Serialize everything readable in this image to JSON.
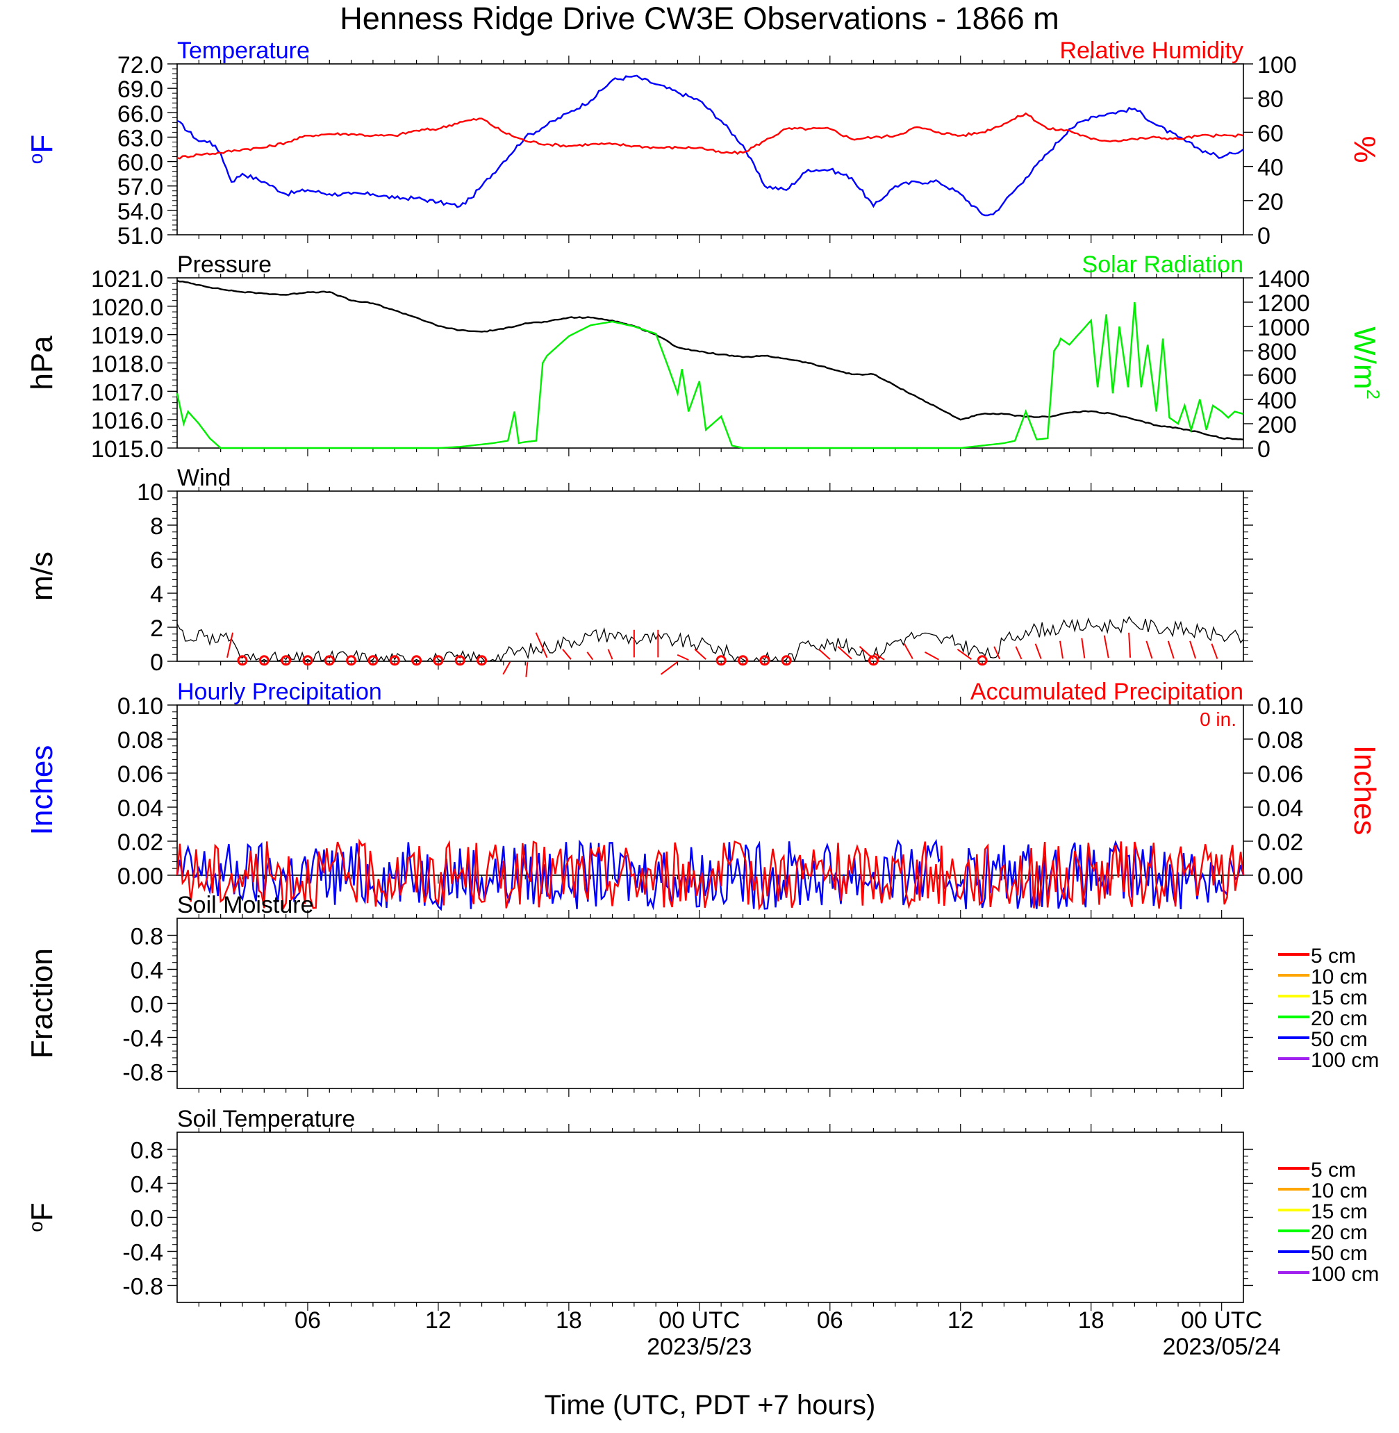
{
  "title": "Henness Ridge Drive CW3E Observations - 1866 m",
  "xlabel": "Time (UTC, PDT +7 hours)",
  "x_ticks": [
    {
      "hour": 6,
      "label": "06",
      "sublabel": ""
    },
    {
      "hour": 12,
      "label": "12",
      "sublabel": ""
    },
    {
      "hour": 18,
      "label": "18",
      "sublabel": ""
    },
    {
      "hour": 24,
      "label": "00 UTC",
      "sublabel": "2023/5/23"
    },
    {
      "hour": 30,
      "label": "06",
      "sublabel": ""
    },
    {
      "hour": 36,
      "label": "12",
      "sublabel": ""
    },
    {
      "hour": 42,
      "label": "18",
      "sublabel": ""
    },
    {
      "hour": 48,
      "label": "00 UTC",
      "sublabel": "2023/05/24"
    }
  ],
  "x_range_hours": [
    0,
    49
  ],
  "colors": {
    "temperature": "#0000ff",
    "humidity": "#ff0000",
    "pressure": "#000000",
    "solar": "#00ee00",
    "wind": "#000000",
    "wind_barb": "#ff0000",
    "precip_hourly": "#0000ff",
    "precip_accum": "#ff0000"
  },
  "chart_data": [
    {
      "type": "line",
      "panel": "temperature-humidity",
      "left_title": "Temperature",
      "right_title": "Relative Humidity",
      "ylabel_left": "oF",
      "ylabel_right": "%",
      "ylim_left": [
        51,
        72
      ],
      "ylim_right": [
        0,
        100
      ],
      "yticks_left": [
        "72.0",
        "69.0",
        "66.0",
        "63.0",
        "60.0",
        "57.0",
        "54.0",
        "51.0"
      ],
      "yticks_right": [
        "100",
        "80",
        "60",
        "40",
        "20",
        "0"
      ],
      "series": [
        {
          "name": "Temperature",
          "axis": "left",
          "color": "#0000ff",
          "x": [
            0,
            1,
            1.5,
            2,
            2.5,
            3,
            4,
            5,
            6,
            7,
            8,
            9,
            10,
            11,
            12,
            13,
            13.5,
            14,
            15,
            16,
            17,
            18,
            19,
            20,
            21,
            22,
            23,
            24,
            25,
            26,
            27,
            28,
            29,
            30,
            31,
            32,
            33,
            34,
            35,
            36,
            37,
            37.5,
            38,
            39,
            40,
            41,
            42,
            43,
            44,
            45,
            46,
            47,
            48,
            48.5,
            49
          ],
          "y": [
            65,
            62.5,
            62.5,
            61,
            57.5,
            58.5,
            57.5,
            56,
            56.5,
            56,
            56,
            56,
            55.5,
            55.5,
            55,
            54.5,
            55.5,
            57,
            60,
            63,
            64.5,
            66,
            67.5,
            70,
            70.5,
            69.5,
            68.5,
            67.5,
            65,
            62,
            57,
            56.5,
            59,
            59,
            58,
            54.5,
            57,
            57.5,
            57.5,
            56,
            53.5,
            53.5,
            55,
            58,
            61,
            64,
            65.5,
            66,
            66.5,
            64.5,
            63,
            61.5,
            60.5,
            61,
            61.5
          ]
        },
        {
          "name": "Relative Humidity",
          "axis": "right",
          "color": "#ff0000",
          "x": [
            0,
            1,
            2,
            3,
            4,
            5,
            6,
            7,
            8,
            9,
            10,
            11,
            12,
            13,
            14,
            15,
            16,
            17,
            18,
            19,
            20,
            21,
            22,
            23,
            24,
            25,
            26,
            27,
            28,
            29,
            30,
            31,
            32,
            33,
            34,
            35,
            36,
            37,
            38,
            39,
            40,
            41,
            42,
            43,
            44,
            45,
            46,
            47,
            48,
            49
          ],
          "y": [
            45,
            47,
            48,
            50,
            51,
            54,
            58,
            59,
            59,
            58,
            58,
            61,
            62,
            66,
            68,
            60,
            55,
            53,
            52,
            53,
            53,
            52,
            51,
            51,
            51,
            48,
            48,
            55,
            62,
            62,
            62,
            56,
            57,
            58,
            63,
            60,
            58,
            60,
            65,
            71,
            62,
            61,
            56,
            55,
            56,
            57,
            56,
            58,
            58,
            58
          ]
        }
      ]
    },
    {
      "type": "line",
      "panel": "pressure-solar",
      "left_title": "Pressure",
      "right_title": "Solar Radiation",
      "ylabel_left": "hPa",
      "ylabel_right": "W/m2",
      "ylim_left": [
        1015,
        1021
      ],
      "ylim_right": [
        0,
        1400
      ],
      "yticks_left": [
        "1021.0",
        "1020.0",
        "1019.0",
        "1018.0",
        "1017.0",
        "1016.0",
        "1015.0"
      ],
      "yticks_right": [
        "1400",
        "1200",
        "1000",
        "800",
        "600",
        "400",
        "200",
        "0"
      ],
      "series": [
        {
          "name": "Pressure",
          "axis": "left",
          "color": "#000000",
          "x": [
            0,
            1,
            2,
            3,
            4,
            5,
            6,
            7,
            8,
            9,
            10,
            11,
            12,
            13,
            14,
            15,
            16,
            17,
            18,
            19,
            20,
            21,
            22,
            23,
            24,
            25,
            26,
            27,
            28,
            29,
            30,
            31,
            32,
            33,
            34,
            35,
            36,
            37,
            38,
            39,
            40,
            41,
            42,
            43,
            44,
            45,
            46,
            47,
            48,
            49
          ],
          "y": [
            1020.9,
            1020.75,
            1020.6,
            1020.5,
            1020.45,
            1020.4,
            1020.5,
            1020.5,
            1020.2,
            1020.1,
            1019.85,
            1019.6,
            1019.3,
            1019.15,
            1019.1,
            1019.2,
            1019.4,
            1019.45,
            1019.6,
            1019.6,
            1019.5,
            1019.3,
            1019,
            1018.55,
            1018.4,
            1018.3,
            1018.2,
            1018.25,
            1018.15,
            1018,
            1017.8,
            1017.6,
            1017.6,
            1017.2,
            1016.8,
            1016.4,
            1016,
            1016.2,
            1016.2,
            1016.1,
            1016.1,
            1016.25,
            1016.3,
            1016.2,
            1016,
            1015.8,
            1015.7,
            1015.55,
            1015.35,
            1015.3
          ]
        },
        {
          "name": "Solar Radiation",
          "axis": "right",
          "color": "#00ee00",
          "x": [
            0,
            0.3,
            0.5,
            1,
            1.5,
            2,
            5,
            10,
            12,
            13,
            14,
            14.5,
            15.2,
            15.5,
            15.7,
            16,
            16.5,
            16.8,
            17,
            18,
            19,
            20,
            21,
            22,
            22.5,
            23,
            23.2,
            23.5,
            24,
            24.3,
            25,
            25.5,
            26,
            30,
            36,
            37,
            38,
            38.5,
            39,
            39.5,
            40,
            40.3,
            40.5,
            40.6,
            41,
            42,
            42.3,
            42.7,
            43,
            43.3,
            43.7,
            44,
            44.3,
            44.6,
            45,
            45.3,
            45.6,
            46,
            46.3,
            46.6,
            47,
            47.3,
            47.6,
            48,
            48.3,
            48.6,
            49
          ],
          "y": [
            450,
            200,
            300,
            200,
            80,
            0,
            0,
            0,
            0,
            10,
            30,
            40,
            60,
            300,
            40,
            50,
            60,
            700,
            760,
            920,
            1010,
            1040,
            1000,
            940,
            700,
            450,
            650,
            300,
            550,
            150,
            260,
            20,
            0,
            0,
            0,
            20,
            40,
            60,
            300,
            70,
            80,
            800,
            850,
            900,
            850,
            1050,
            500,
            1100,
            450,
            1000,
            500,
            1200,
            500,
            850,
            300,
            900,
            250,
            200,
            350,
            150,
            400,
            150,
            350,
            300,
            250,
            300,
            280
          ]
        }
      ]
    },
    {
      "type": "line",
      "panel": "wind",
      "left_title": "Wind",
      "ylabel_left": "m/s",
      "ylim_left": [
        0,
        10
      ],
      "yticks_left": [
        "10",
        "8",
        "6",
        "4",
        "2",
        "0"
      ],
      "series": [
        {
          "name": "Wind",
          "axis": "left",
          "color": "#000000",
          "x": [
            0,
            0.5,
            1,
            1.5,
            2,
            2.5,
            2.8,
            3,
            4,
            5,
            6,
            7,
            8,
            9,
            10,
            11,
            12,
            13,
            14,
            14.5,
            15,
            16,
            17,
            18,
            19,
            20,
            21,
            22,
            23,
            24,
            25,
            25.5,
            26,
            27,
            28,
            28.5,
            29,
            30,
            31,
            32,
            33,
            33.5,
            34,
            35,
            36,
            37,
            37.5,
            38,
            39,
            40,
            41,
            42,
            43,
            44,
            45,
            46,
            47,
            48,
            49
          ],
          "y": [
            2.2,
            1.2,
            1.8,
            1,
            1.6,
            1.3,
            0.6,
            0.2,
            0.1,
            0.1,
            0.1,
            0.2,
            0.3,
            0.1,
            0.1,
            0.1,
            0.1,
            0.2,
            0.2,
            0.1,
            0.4,
            0.6,
            0.8,
            1.2,
            1.5,
            1.6,
            1.3,
            1.3,
            1.2,
            1,
            0.7,
            0.3,
            0.1,
            0.1,
            0.1,
            0.5,
            1.2,
            1,
            0.8,
            0.3,
            1.2,
            1.4,
            1.5,
            1.3,
            1,
            0.5,
            0.2,
            1.2,
            1.8,
            1.9,
            2,
            2.1,
            2.1,
            2.2,
            2,
            1.9,
            1.7,
            1.5,
            1.3
          ]
        }
      ],
      "calm_hours": [
        3,
        4,
        5,
        6,
        7,
        8,
        9,
        10,
        11,
        12,
        13,
        14,
        25,
        26,
        27,
        28,
        32,
        37
      ],
      "barbs": [
        {
          "hour": 2.3,
          "dx": 4,
          "dy": -20
        },
        {
          "hour": 15.3,
          "dx": -5,
          "dy": 10
        },
        {
          "hour": 16.1,
          "dx": -1,
          "dy": 12
        },
        {
          "hour": 17,
          "dx": -8,
          "dy": -20
        },
        {
          "hour": 18.1,
          "dx": -6,
          "dy": -8
        },
        {
          "hour": 19.1,
          "dx": -4,
          "dy": -6
        },
        {
          "hour": 20,
          "dx": -3,
          "dy": -8
        },
        {
          "hour": 21,
          "dx": 0,
          "dy": -22
        },
        {
          "hour": 22.1,
          "dx": 0,
          "dy": -22
        },
        {
          "hour": 23,
          "dx": -12,
          "dy": 10
        },
        {
          "hour": 23.5,
          "dx": -8,
          "dy": -4
        },
        {
          "hour": 24.3,
          "dx": -8,
          "dy": -8
        },
        {
          "hour": 30,
          "dx": -8,
          "dy": -8
        },
        {
          "hour": 31,
          "dx": -10,
          "dy": -10
        },
        {
          "hour": 32,
          "dx": -10,
          "dy": -10
        },
        {
          "hour": 32.5,
          "dx": -7,
          "dy": -5
        },
        {
          "hour": 33.8,
          "dx": -6,
          "dy": -12
        },
        {
          "hour": 35,
          "dx": -10,
          "dy": -6
        },
        {
          "hour": 36.5,
          "dx": -10,
          "dy": -8
        },
        {
          "hour": 37.8,
          "dx": -4,
          "dy": -10
        },
        {
          "hour": 38.8,
          "dx": -4,
          "dy": -10
        },
        {
          "hour": 39.7,
          "dx": -4,
          "dy": -12
        },
        {
          "hour": 40.7,
          "dx": -2,
          "dy": -14
        },
        {
          "hour": 41.7,
          "dx": -2,
          "dy": -16
        },
        {
          "hour": 42.8,
          "dx": -3,
          "dy": -18
        },
        {
          "hour": 43.8,
          "dx": -1,
          "dy": -20
        },
        {
          "hour": 44.8,
          "dx": -4,
          "dy": -14
        },
        {
          "hour": 45.8,
          "dx": -4,
          "dy": -14
        },
        {
          "hour": 46.8,
          "dx": -4,
          "dy": -14
        },
        {
          "hour": 47.8,
          "dx": -4,
          "dy": -12
        }
      ]
    },
    {
      "type": "line",
      "panel": "precipitation",
      "left_title": "Hourly Precipitation",
      "right_title": "Accumulated Precipitation",
      "annotation": "0 in.",
      "ylabel_left": "Inches",
      "ylabel_right": "Inches",
      "ylim_left": [
        0,
        0.1
      ],
      "ylim_right": [
        0,
        0.1
      ],
      "yticks_left": [
        "0.10",
        "0.08",
        "0.06",
        "0.04",
        "0.02",
        "0.00"
      ],
      "yticks_right": [
        "0.10",
        "0.08",
        "0.06",
        "0.04",
        "0.02",
        "0.00"
      ],
      "series": [
        {
          "name": "Hourly Precipitation",
          "axis": "left",
          "color": "#0000ff",
          "x": [
            0,
            49
          ],
          "y": [
            0,
            0
          ]
        },
        {
          "name": "Accumulated Precipitation",
          "axis": "right",
          "color": "#ff0000",
          "x": [
            0,
            49
          ],
          "y": [
            0,
            0
          ]
        }
      ]
    },
    {
      "type": "line",
      "panel": "soil-moisture",
      "left_title": "Soil Moisture",
      "ylabel_left": "Fraction",
      "ylim_left": [
        -1,
        1
      ],
      "yticks_left": [
        "0.8",
        "0.4",
        "0.0",
        "-0.4",
        "-0.8"
      ],
      "legend": [
        {
          "label": "5 cm",
          "color": "#ff0000"
        },
        {
          "label": "10 cm",
          "color": "#ffa500"
        },
        {
          "label": "15 cm",
          "color": "#ffff00"
        },
        {
          "label": "20 cm",
          "color": "#00ff00"
        },
        {
          "label": "50 cm",
          "color": "#0000ff"
        },
        {
          "label": "100 cm",
          "color": "#a020f0"
        }
      ],
      "series": []
    },
    {
      "type": "line",
      "panel": "soil-temperature",
      "left_title": "Soil Temperature",
      "ylabel_left": "oF",
      "ylim_left": [
        -1,
        1
      ],
      "yticks_left": [
        "0.8",
        "0.4",
        "0.0",
        "-0.4",
        "-0.8"
      ],
      "legend": [
        {
          "label": "5 cm",
          "color": "#ff0000"
        },
        {
          "label": "10 cm",
          "color": "#ffa500"
        },
        {
          "label": "15 cm",
          "color": "#ffff00"
        },
        {
          "label": "20 cm",
          "color": "#00ff00"
        },
        {
          "label": "50 cm",
          "color": "#0000ff"
        },
        {
          "label": "100 cm",
          "color": "#a020f0"
        }
      ],
      "series": []
    }
  ]
}
